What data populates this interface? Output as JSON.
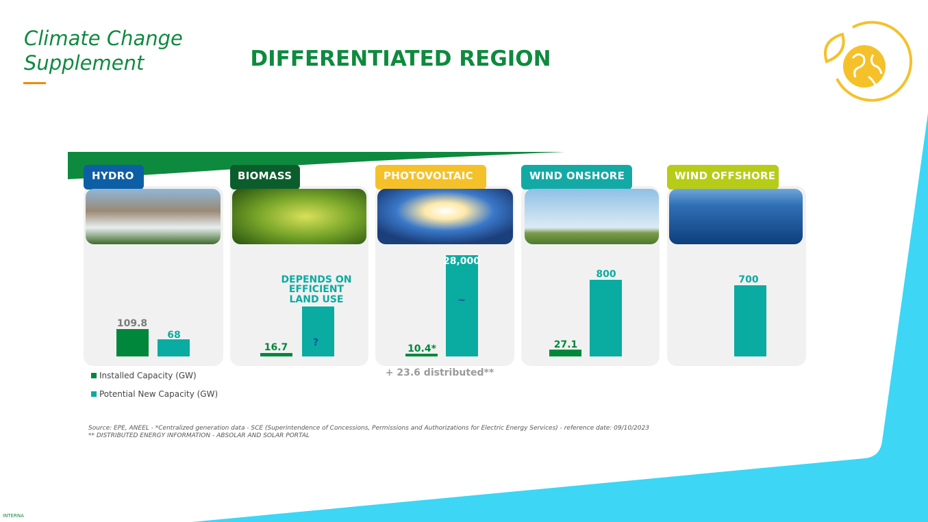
{
  "header": {
    "subtitle": [
      "Climate Change",
      "Supplement"
    ],
    "title": "DIFFERENTIATED REGION"
  },
  "panels": [
    {
      "label": "HYDRO",
      "installed": "109.8",
      "potential": "68"
    },
    {
      "label": "BIOMASS",
      "installed": "16.7",
      "potential": "?",
      "note": [
        "DEPENDS ON",
        "EFFICIENT",
        "LAND USE"
      ]
    },
    {
      "label": "PHOTOVOLTAIC",
      "installed": "10.4*",
      "potential": "28,000",
      "symbol": "~",
      "footnote": "+ 23.6 distributed**"
    },
    {
      "label": "WIND ONSHORE",
      "installed": "27.1",
      "potential": "800"
    },
    {
      "label": "WIND OFFSHORE",
      "potential": "700"
    }
  ],
  "legend": [
    "Installed Capacity (GW)",
    "Potential New Capacity (GW)"
  ],
  "source": [
    "Source: EPE, ANEEL - *Centralized generation data - SCE (Superintendence of Concessions, Permissions and Authorizations for Electric Energy Services) - reference date: 09/10/2023",
    "** DISTRIBUTED ENERGY INFORMATION - ABSOLAR AND SOLAR PORTAL"
  ],
  "footer": "INTERNA"
}
